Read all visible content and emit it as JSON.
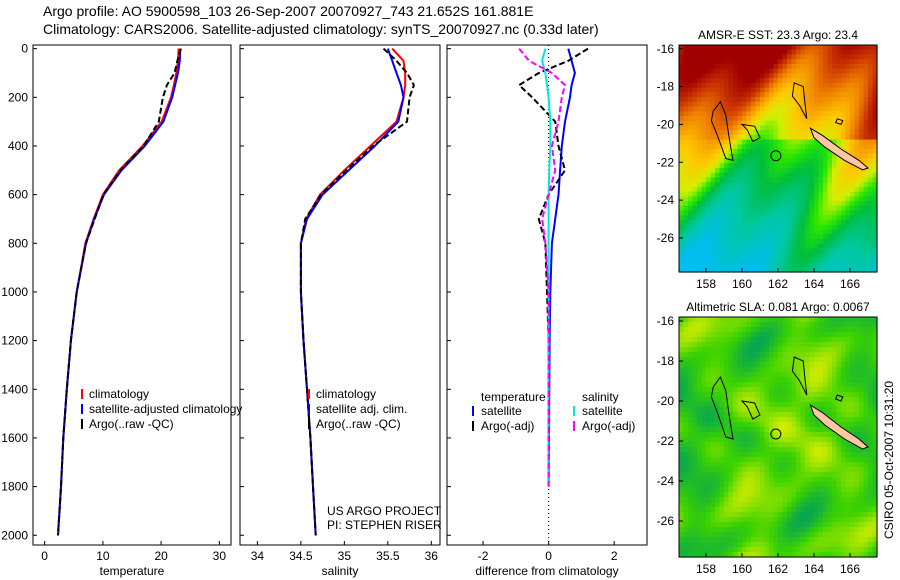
{
  "title_line1": "Argo profile: AO 5900598_103 26-Sep-2007 20070927_743 21.652S 161.881E",
  "title_line2": "Climatology: CARS2006. Satellite-adjusted climatology: synTS_20070927.nc (0.33d later)",
  "stamp": "CSIRO 05-Oct-2007 10:31:20",
  "colors": {
    "clim": "#ff0000",
    "sat": "#0000ff",
    "argo": "#000000",
    "salsat": "#00e5e5",
    "salargo": "#ff00ff"
  },
  "chart_data": [
    {
      "type": "line",
      "id": "temperature",
      "xlabel": "temperature",
      "xlim": [
        -2,
        32
      ],
      "ylim": [
        2040,
        -15
      ],
      "xticks": [
        0,
        10,
        20,
        30
      ],
      "yticks": [
        0,
        200,
        400,
        600,
        800,
        1000,
        1200,
        1400,
        1600,
        1800,
        2000
      ],
      "legend": [
        "climatology",
        "satellite-adjusted climatology",
        "Argo(..raw -QC)"
      ],
      "depth": [
        0,
        50,
        100,
        150,
        200,
        300,
        400,
        500,
        600,
        700,
        800,
        1000,
        1200,
        1400,
        1600,
        1800,
        2000
      ],
      "series": [
        {
          "name": "climatology",
          "color": "clim",
          "values": [
            23.0,
            22.9,
            22.6,
            22.2,
            21.7,
            20.1,
            16.8,
            12.8,
            10.0,
            8.4,
            7.0,
            5.5,
            4.5,
            3.8,
            3.2,
            2.8,
            2.3
          ]
        },
        {
          "name": "satellite-adjusted climatology",
          "color": "sat",
          "values": [
            23.3,
            23.2,
            22.9,
            22.4,
            21.9,
            20.4,
            17.2,
            13.2,
            10.2,
            8.5,
            7.1,
            5.5,
            4.5,
            3.8,
            3.2,
            2.8,
            2.3
          ]
        },
        {
          "name": "Argo(..raw -QC)",
          "color": "argo",
          "values": [
            23.4,
            22.8,
            22.3,
            21.0,
            20.3,
            19.6,
            17.0,
            13.0,
            10.1,
            8.6,
            7.1,
            5.5,
            4.5,
            3.8,
            3.2,
            2.8,
            2.3
          ]
        }
      ]
    },
    {
      "type": "line",
      "id": "salinity",
      "xlabel": "salinity",
      "xlim": [
        33.8,
        36.1
      ],
      "ylim": [
        2040,
        -15
      ],
      "xticks": [
        34,
        34.5,
        35,
        35.5,
        36
      ],
      "legend": [
        "climatology",
        "satellite adj. clim.",
        "Argo(..raw -QC)"
      ],
      "annotation": [
        "US ARGO PROJECT",
        "PI: STEPHEN RISER"
      ],
      "depth": [
        0,
        50,
        100,
        150,
        200,
        300,
        400,
        500,
        600,
        700,
        800,
        1000,
        1200,
        1400,
        1600,
        1800,
        2000
      ],
      "series": [
        {
          "name": "climatology",
          "color": "clim",
          "values": [
            35.55,
            35.68,
            35.7,
            35.7,
            35.68,
            35.6,
            35.3,
            35.0,
            34.72,
            34.56,
            34.5,
            34.5,
            34.53,
            34.57,
            34.61,
            34.64,
            34.67
          ]
        },
        {
          "name": "satellite adj. clim.",
          "color": "sat",
          "values": [
            35.5,
            35.55,
            35.6,
            35.65,
            35.68,
            35.62,
            35.35,
            35.05,
            34.75,
            34.57,
            34.5,
            34.5,
            34.53,
            34.57,
            34.61,
            34.64,
            34.67
          ]
        },
        {
          "name": "Argo(..raw -QC)",
          "color": "argo",
          "values": [
            35.45,
            35.6,
            35.72,
            35.8,
            35.75,
            35.72,
            35.33,
            35.02,
            34.73,
            34.55,
            34.5,
            34.5,
            34.53,
            34.57,
            34.61,
            34.64,
            34.67
          ]
        }
      ]
    },
    {
      "type": "line",
      "id": "difference",
      "xlabel": "difference from climatology",
      "xlim": [
        -3.1,
        3.0
      ],
      "ylim": [
        2040,
        -15
      ],
      "xticks": [
        -2,
        0,
        2
      ],
      "legend_headers": [
        "temperature",
        "salinity"
      ],
      "legend": [
        "satellite",
        "Argo(-adj)",
        "satellite",
        "Argo(-adj)"
      ],
      "depth": [
        0,
        50,
        100,
        150,
        200,
        300,
        400,
        500,
        600,
        700,
        800,
        1000,
        1200,
        1400,
        1600,
        1800
      ],
      "series": [
        {
          "name": "temperature satellite",
          "color": "sat",
          "values": [
            0.6,
            0.7,
            0.8,
            0.7,
            0.65,
            0.5,
            0.4,
            0.35,
            0.3,
            0.2,
            0.1,
            0.05,
            0.03,
            0.02,
            0.01,
            0.0
          ]
        },
        {
          "name": "temperature Argo(-adj)",
          "color": "argo",
          "values": [
            1.2,
            0.6,
            -0.3,
            -0.9,
            -0.5,
            0.2,
            0.3,
            0.5,
            0.0,
            -0.3,
            -0.1,
            -0.05,
            0.0,
            0.0,
            0.0,
            0.0
          ]
        },
        {
          "name": "salinity satellite",
          "color": "salsat",
          "values": [
            -0.1,
            -0.2,
            -0.1,
            -0.05,
            0.0,
            0.05,
            0.05,
            0.02,
            0.0,
            0.0,
            0.0,
            0.0,
            0.0,
            0.0,
            0.0,
            0.0
          ]
        },
        {
          "name": "salinity Argo(-adj)",
          "color": "salargo",
          "values": [
            -0.9,
            -0.6,
            0.1,
            0.5,
            0.4,
            0.3,
            0.1,
            0.2,
            0.0,
            -0.2,
            -0.1,
            0.0,
            0.0,
            0.0,
            0.0,
            0.0
          ]
        }
      ]
    },
    {
      "type": "heatmap",
      "id": "sst-map",
      "title": "AMSR-E SST: 23.3 Argo: 23.4",
      "xlim": [
        156.5,
        167.5
      ],
      "ylim": [
        -27.8,
        -15.8
      ],
      "xticks": [
        158,
        160,
        162,
        164,
        166
      ],
      "yticks": [
        -16,
        -18,
        -20,
        -22,
        -24,
        -26
      ],
      "profile_location": [
        161.881,
        -21.652
      ]
    },
    {
      "type": "heatmap",
      "id": "sla-map",
      "title": "Altimetric SLA: 0.081 Argo: 0.0067",
      "xlim": [
        156.5,
        167.5
      ],
      "ylim": [
        -27.8,
        -15.8
      ],
      "xticks": [
        158,
        160,
        162,
        164,
        166
      ],
      "yticks": [
        -16,
        -18,
        -20,
        -22,
        -24,
        -26
      ],
      "profile_location": [
        161.881,
        -21.652
      ]
    }
  ]
}
